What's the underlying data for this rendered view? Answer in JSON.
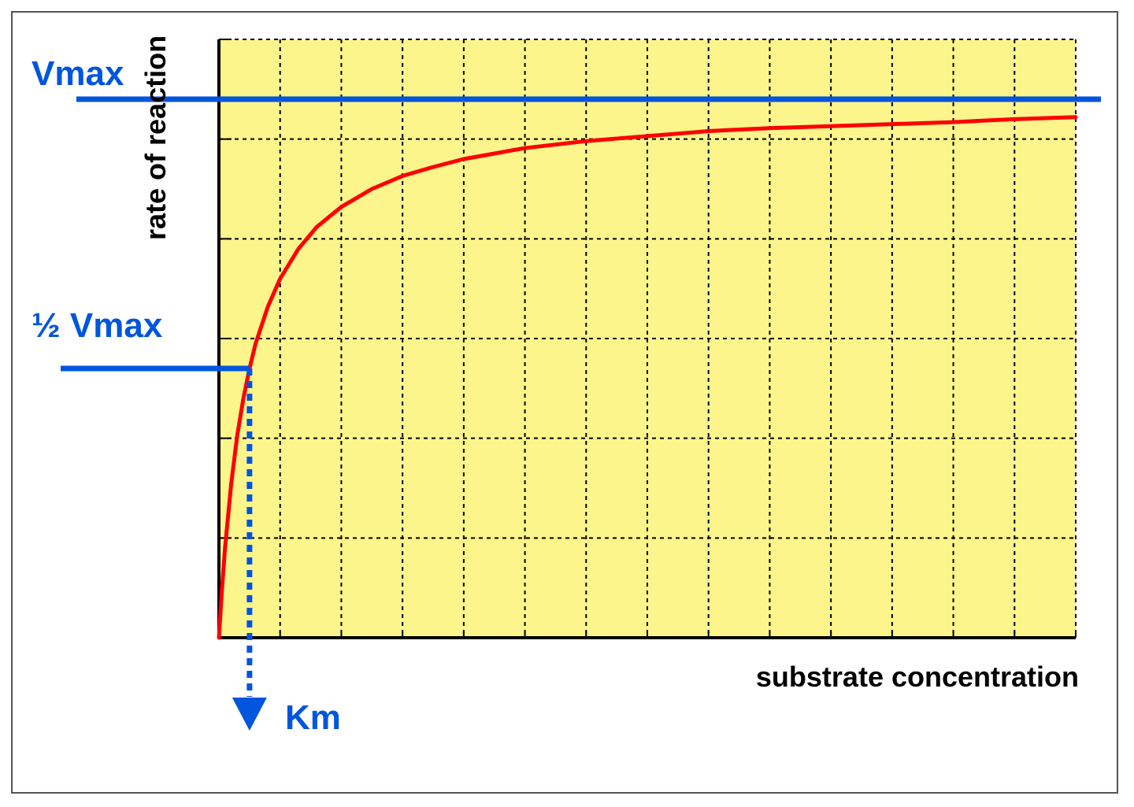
{
  "chart_data": {
    "type": "line",
    "xlabel": "substrate concentration",
    "ylabel": "rate of reaction",
    "xlim": [
      0,
      14
    ],
    "ylim": [
      0,
      6
    ],
    "grid": true,
    "background_color": "#fbf58c",
    "curve_color": "#ff0000",
    "annotation_color": "#0055dd",
    "vmax": 5.4,
    "km": 0.5,
    "series": [
      {
        "x": [
          0,
          0.05,
          0.1,
          0.2,
          0.3,
          0.4,
          0.5,
          0.6,
          0.8,
          1.0,
          1.3,
          1.6,
          2.0,
          2.5,
          3.0,
          3.5,
          4.0,
          5.0,
          6.0,
          7.0,
          8.0,
          9.0,
          10.0,
          11.0,
          12.0,
          13.0,
          14.0
        ],
        "y": [
          0,
          0.49,
          0.9,
          1.54,
          2.03,
          2.4,
          2.7,
          2.95,
          3.32,
          3.6,
          3.9,
          4.12,
          4.32,
          4.5,
          4.63,
          4.72,
          4.8,
          4.91,
          4.98,
          5.03,
          5.08,
          5.11,
          5.13,
          5.15,
          5.17,
          5.2,
          5.22
        ]
      }
    ],
    "annotations": {
      "vmax_label": "Vmax",
      "half_vmax_label": "½ Vmax",
      "km_label": "Km"
    }
  }
}
